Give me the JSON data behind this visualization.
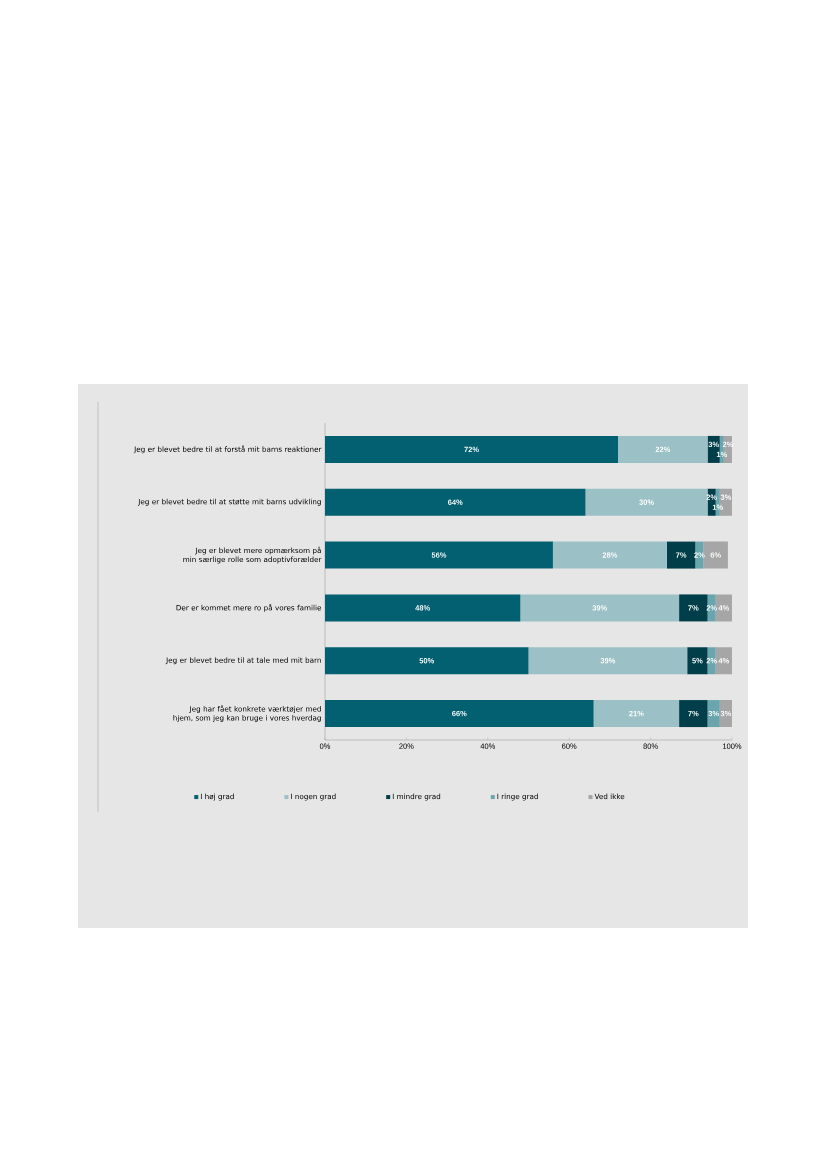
{
  "chart_data": {
    "type": "bar",
    "orientation": "horizontal",
    "stacked": true,
    "categories": [
      "Jeg er blevet bedre til at forstå mit barns reaktioner",
      "Jeg er blevet bedre til at støtte mit barns udvikling",
      "Jeg er blevet mere opmærksom på min særlige rolle som adoptivforælder",
      "Der er kommet mere ro på vores familie",
      "Jeg er blevet bedre til at tale med mit barn",
      "Jeg har fået konkrete værktøjer med hjem, som jeg kan bruge i vores hverdag"
    ],
    "series": [
      {
        "name": "I høj grad",
        "color": "#036070",
        "values": [
          72,
          64,
          56,
          48,
          50,
          66
        ],
        "value_labels": [
          "72%",
          "64%",
          "56%",
          "48%",
          "50%",
          "66%"
        ]
      },
      {
        "name": "I nogen grad",
        "color": "#9bc0c6",
        "values": [
          22,
          30,
          28,
          39,
          39,
          21
        ],
        "value_labels": [
          "22%",
          "30%",
          "28%",
          "39%",
          "39%",
          "21%"
        ]
      },
      {
        "name": "I mindre grad",
        "color": "#003f4a",
        "values": [
          3,
          2,
          7,
          7,
          5,
          7
        ],
        "value_labels": [
          "3%",
          "2%",
          "7%",
          "7%",
          "5%",
          "7%"
        ]
      },
      {
        "name": "I ringe grad",
        "color": "#6aa5ad",
        "values": [
          1,
          1,
          2,
          2,
          2,
          3
        ],
        "value_labels": [
          "1%",
          "1%",
          "2%",
          "2%",
          "2%",
          "3%"
        ]
      },
      {
        "name": "Ved ikke",
        "color": "#a6a6a6",
        "values": [
          2,
          3,
          6,
          4,
          4,
          3
        ],
        "value_labels": [
          "2%",
          "3%",
          "6%",
          "4%",
          "4%",
          "3%"
        ]
      }
    ],
    "xlim": [
      0,
      100
    ],
    "xticks": [
      {
        "value": 0,
        "label": "0%"
      },
      {
        "value": 20,
        "label": "20%"
      },
      {
        "value": 40,
        "label": "40%"
      },
      {
        "value": 60,
        "label": "60%"
      },
      {
        "value": 80,
        "label": "80%"
      },
      {
        "value": 100,
        "label": "100%"
      }
    ],
    "legend": "bottom",
    "grid": false
  }
}
